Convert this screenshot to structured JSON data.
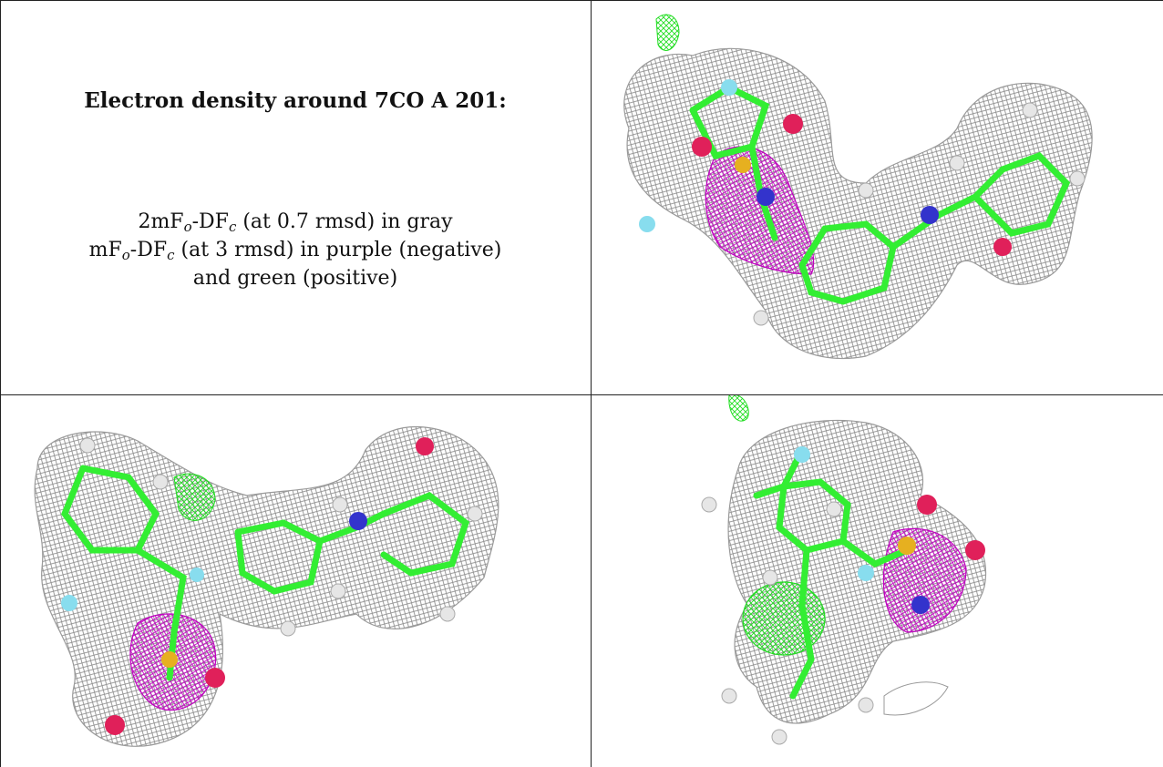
{
  "caption": {
    "title": "Electron density around 7CO A 201:",
    "line1": {
      "prefix": "2mF",
      "sub1": "o",
      "mid": "-DF",
      "sub2": "c",
      "suffix": " (at 0.7 rmsd) in gray"
    },
    "line2": {
      "prefix": "mF",
      "sub1": "o",
      "mid": "-DF",
      "sub2": "c",
      "suffix": " (at 3 rmsd) in purple (negative)"
    },
    "line3": "and green (positive)"
  },
  "colors": {
    "density_2fofc": "#8a8a8a",
    "difference_negative": "#c000c0",
    "difference_positive": "#22dd22",
    "carbon": "#33ee33",
    "hydrogen": "#e6e6e6",
    "oxygen": "#e0205a",
    "nitrogen": "#3333cc",
    "sulfur": "#e6b020",
    "fluorine": "#88ddee"
  },
  "panels": [
    {
      "id": "view-1",
      "description_icon": "ligand-density-view"
    },
    {
      "id": "view-2",
      "description_icon": "ligand-density-view"
    },
    {
      "id": "view-3",
      "description_icon": "ligand-density-view"
    }
  ]
}
